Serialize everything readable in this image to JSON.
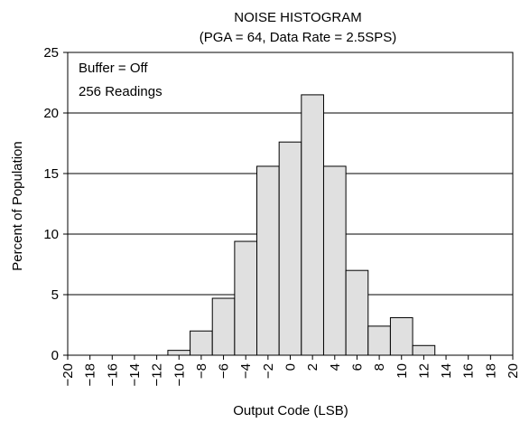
{
  "chart_data": {
    "type": "bar",
    "title": "NOISE HISTOGRAM",
    "subtitle": "(PGA = 64, Data Rate = 2.5SPS)",
    "xlabel": "Output Code (LSB)",
    "ylabel": "Percent of Population",
    "xlim": [
      -20,
      20
    ],
    "ylim": [
      0,
      25
    ],
    "x_ticks": [
      "−20",
      "−18",
      "−16",
      "−14",
      "−12",
      "−10",
      "−8",
      "−6",
      "−4",
      "−2",
      "0",
      "2",
      "4",
      "6",
      "8",
      "10",
      "12",
      "14",
      "16",
      "18",
      "20"
    ],
    "y_ticks": [
      "0",
      "5",
      "10",
      "15",
      "20",
      "25"
    ],
    "y_gridlines": [
      5,
      10,
      15,
      20
    ],
    "bin_width": 2,
    "bin_centers": [
      -10,
      -8,
      -6,
      -4,
      -2,
      0,
      2,
      4,
      6,
      8,
      10,
      12
    ],
    "values": [
      0.4,
      2.0,
      4.7,
      9.4,
      15.6,
      17.6,
      21.5,
      15.6,
      7.0,
      2.4,
      3.1,
      0.8
    ],
    "bar_color": "#e0e0e0",
    "annotations": [
      "Buffer = Off",
      "256 Readings"
    ]
  }
}
